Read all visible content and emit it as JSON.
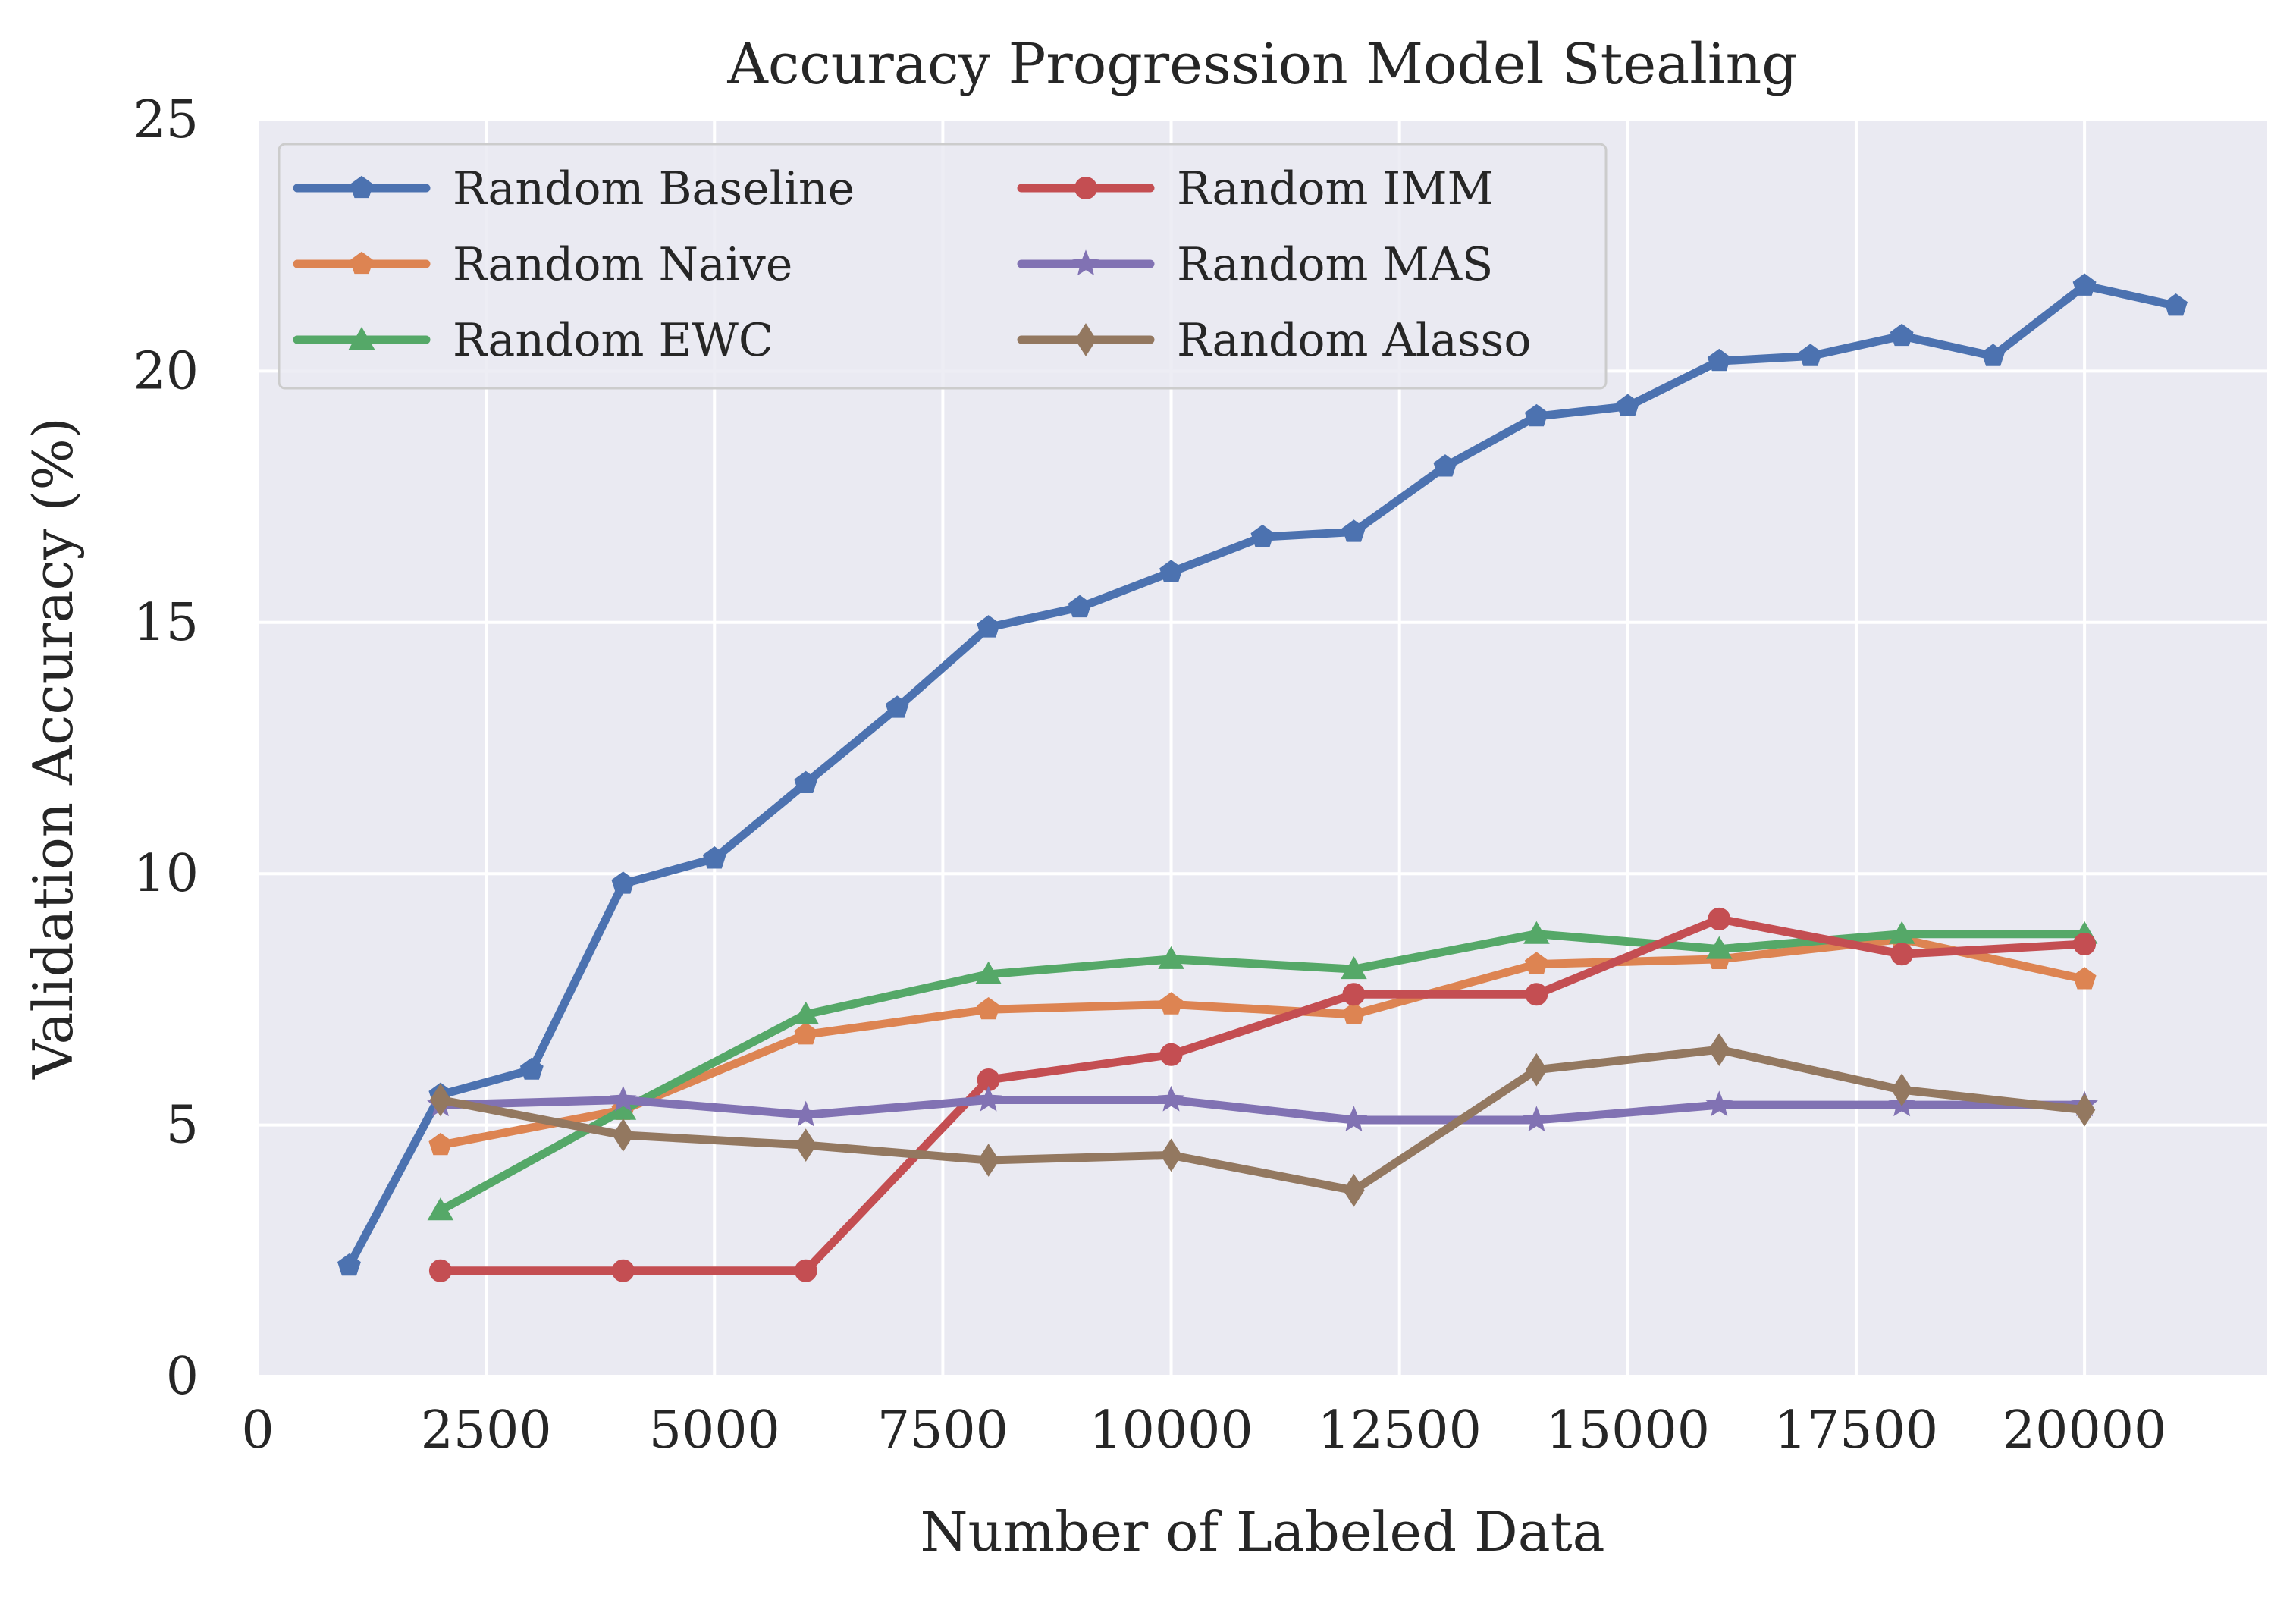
{
  "chart_data": {
    "type": "line",
    "title": "Accuracy Progression Model Stealing",
    "xlabel": "Number of Labeled Data",
    "ylabel": "Validation Accuracy (%)",
    "xlim": [
      0,
      22000
    ],
    "ylim": [
      0,
      25
    ],
    "xticks": [
      0,
      2500,
      5000,
      7500,
      10000,
      12500,
      15000,
      17500,
      20000
    ],
    "yticks": [
      0,
      5,
      10,
      15,
      20,
      25
    ],
    "grid": true,
    "legend_position": "top-left",
    "legend_columns": 2,
    "series": [
      {
        "name": "Random Baseline",
        "color": "#4c72b0",
        "marker": "pentagon",
        "x": [
          1000,
          2000,
          3000,
          4000,
          5000,
          6000,
          7000,
          8000,
          9000,
          10000,
          11000,
          12000,
          13000,
          14000,
          15000,
          16000,
          17000,
          18000,
          19000,
          20000,
          21000
        ],
        "y": [
          2.2,
          5.6,
          6.1,
          9.8,
          10.3,
          11.8,
          13.3,
          14.9,
          15.3,
          16.0,
          16.7,
          16.8,
          18.1,
          19.1,
          19.3,
          20.2,
          20.3,
          20.7,
          20.3,
          21.7,
          21.3
        ]
      },
      {
        "name": "Random Naive",
        "color": "#dd8452",
        "marker": "pentagon",
        "x": [
          2000,
          4000,
          6000,
          8000,
          10000,
          12000,
          14000,
          16000,
          18000,
          20000
        ],
        "y": [
          4.6,
          5.3,
          6.8,
          7.3,
          7.4,
          7.2,
          8.2,
          8.3,
          8.7,
          7.9
        ]
      },
      {
        "name": "Random EWC",
        "color": "#55a868",
        "marker": "triangle",
        "x": [
          2000,
          4000,
          6000,
          8000,
          10000,
          12000,
          14000,
          16000,
          18000,
          20000
        ],
        "y": [
          3.3,
          5.3,
          7.2,
          8.0,
          8.3,
          8.1,
          8.8,
          8.5,
          8.8,
          8.8
        ]
      },
      {
        "name": "Random IMM",
        "color": "#c44e52",
        "marker": "circle",
        "x": [
          2000,
          4000,
          6000,
          8000,
          10000,
          12000,
          14000,
          16000,
          18000,
          20000
        ],
        "y": [
          2.1,
          2.1,
          2.1,
          5.9,
          6.4,
          7.6,
          7.6,
          9.1,
          8.4,
          8.6
        ]
      },
      {
        "name": "Random MAS",
        "color": "#8172b3",
        "marker": "star",
        "x": [
          2000,
          4000,
          6000,
          8000,
          10000,
          12000,
          14000,
          16000,
          18000,
          20000
        ],
        "y": [
          5.4,
          5.5,
          5.2,
          5.5,
          5.5,
          5.1,
          5.1,
          5.4,
          5.4,
          5.4
        ]
      },
      {
        "name": "Random Alasso",
        "color": "#937860",
        "marker": "diamond",
        "x": [
          2000,
          4000,
          6000,
          8000,
          10000,
          12000,
          14000,
          16000,
          18000,
          20000
        ],
        "y": [
          5.5,
          4.8,
          4.6,
          4.3,
          4.4,
          3.7,
          6.1,
          6.5,
          5.7,
          5.3
        ]
      }
    ]
  },
  "colors": {
    "plot_background": "#eaeaf2",
    "grid": "#ffffff",
    "legend_background": "#eaeaf2",
    "legend_border": "#cccccc"
  }
}
